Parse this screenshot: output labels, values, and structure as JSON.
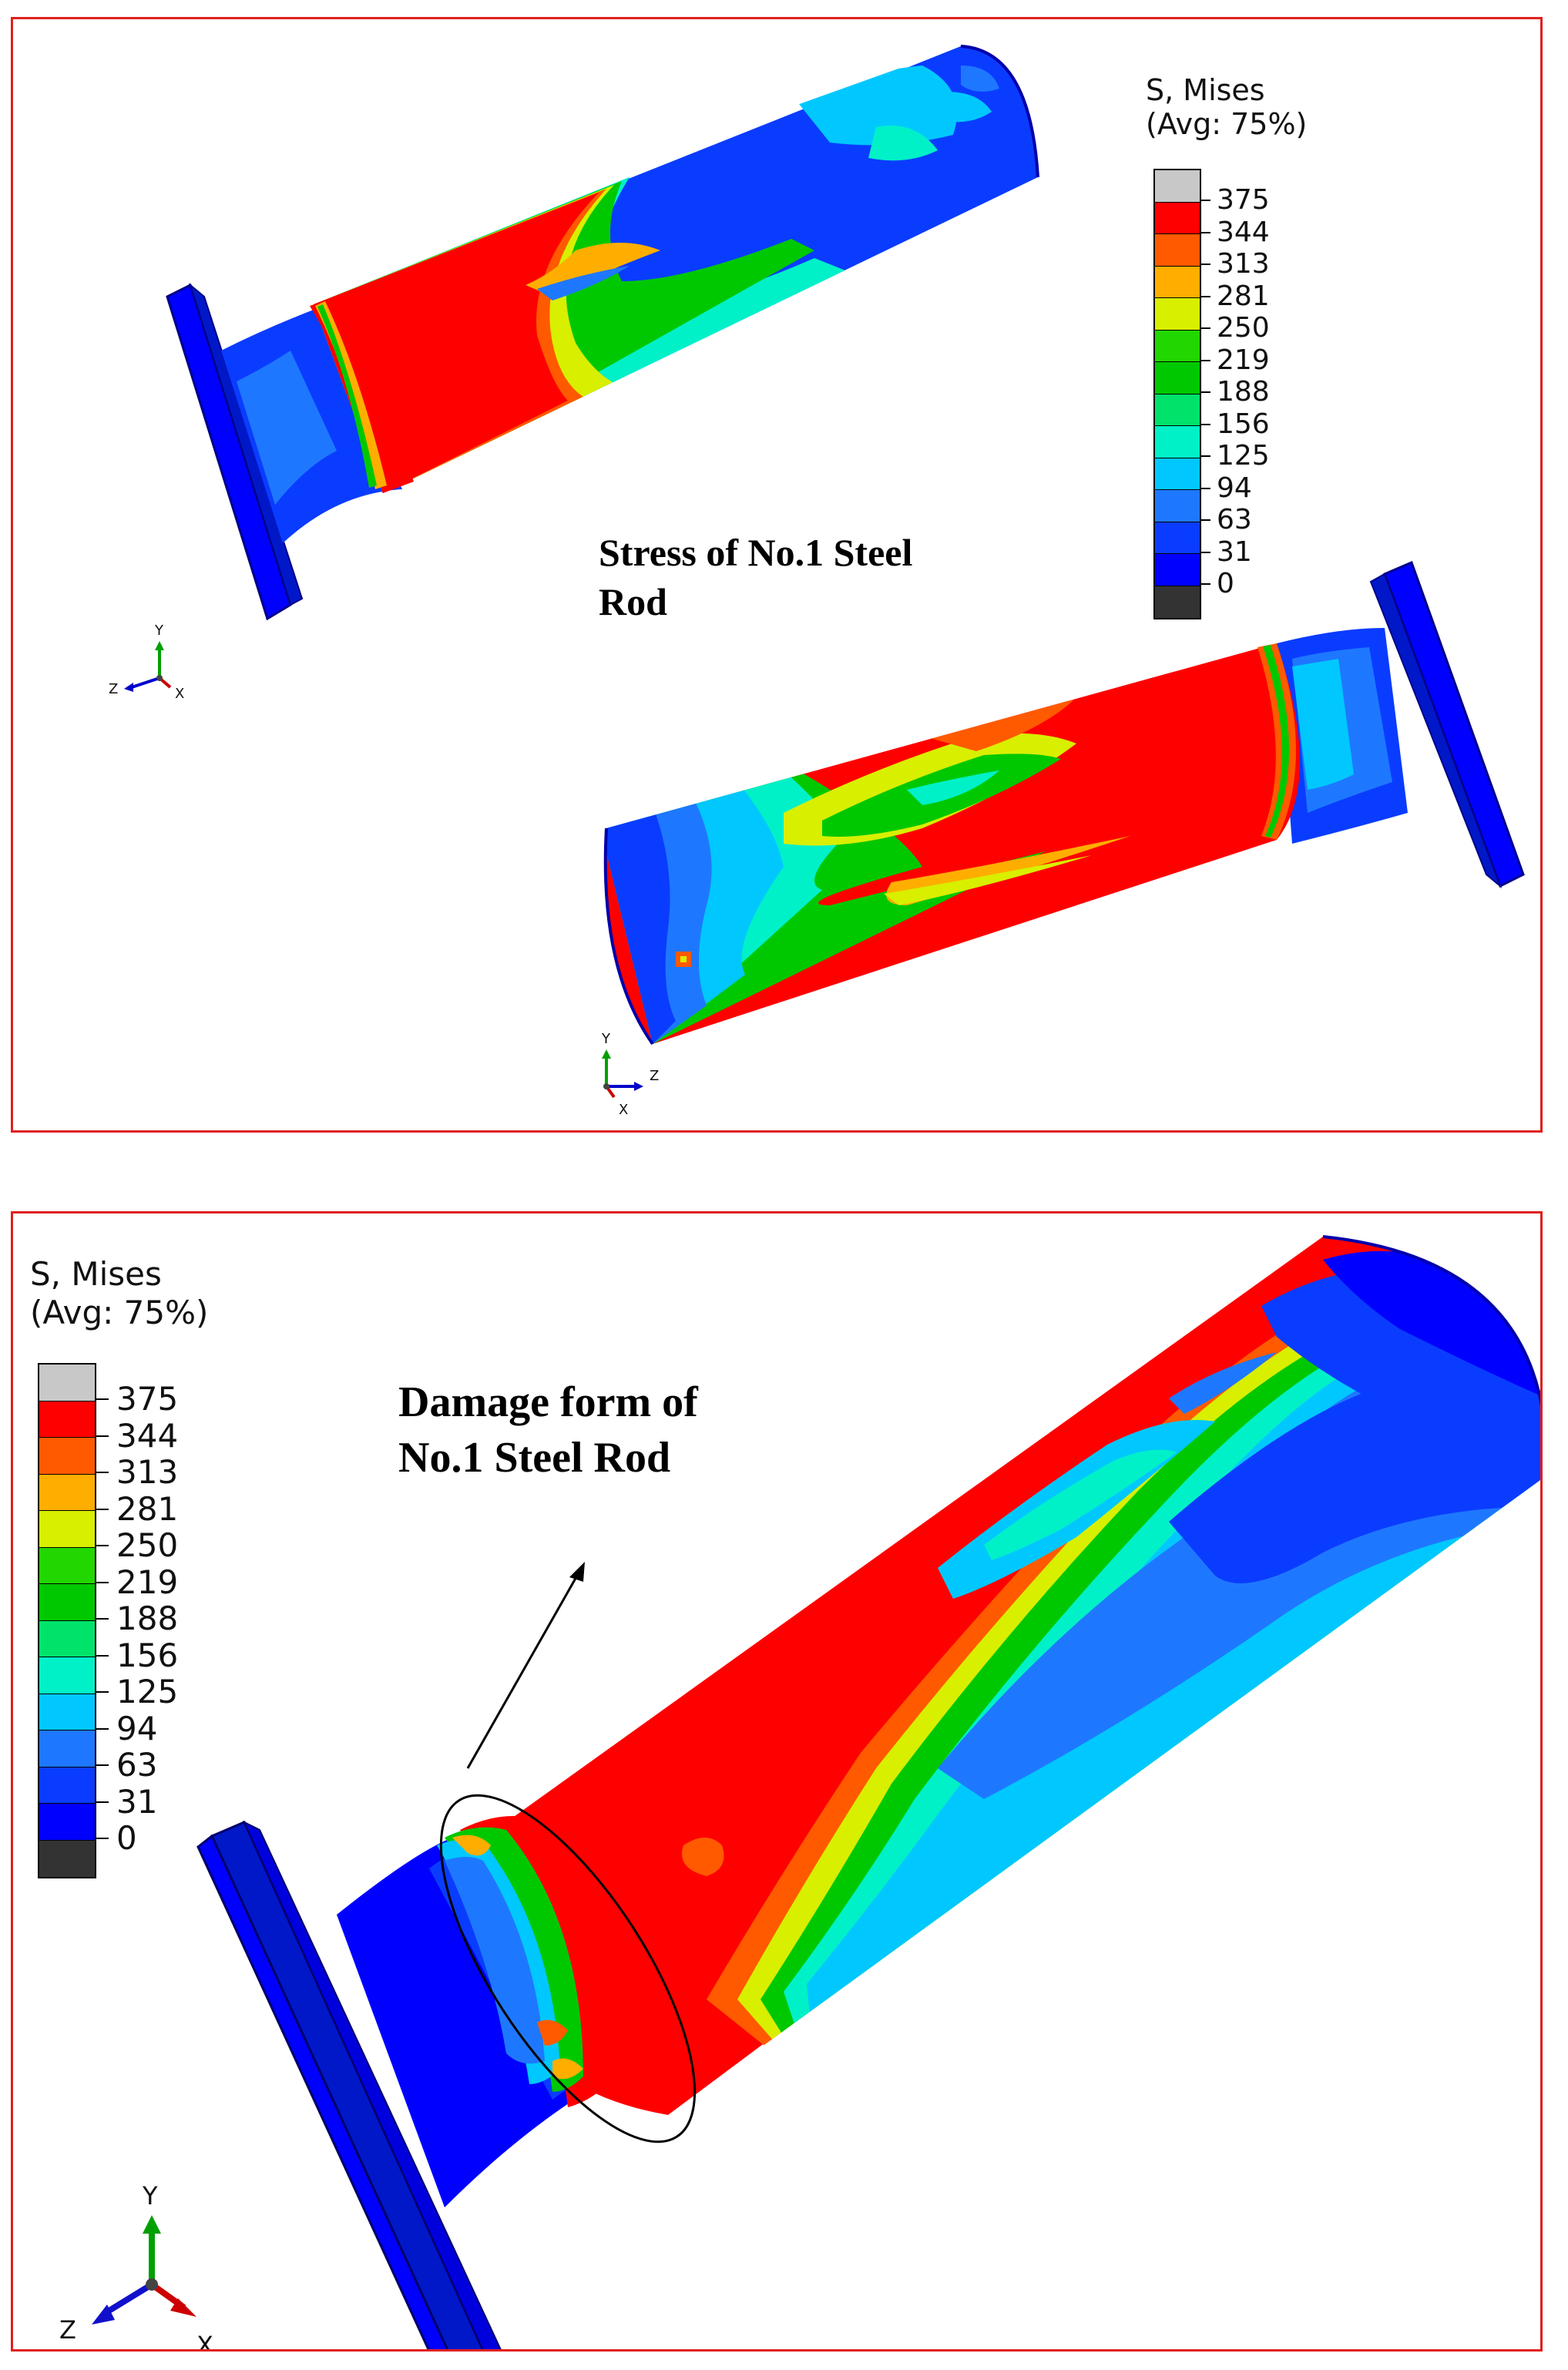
{
  "legend": {
    "title_line1": "S, Mises",
    "title_line2": "(Avg: 75%)",
    "values": [
      "375",
      "344",
      "313",
      "281",
      "250",
      "219",
      "188",
      "156",
      "125",
      "94",
      "63",
      "31",
      "0"
    ],
    "colors": [
      "#c8c8c8",
      "#ff0000",
      "#ff5a00",
      "#ffae00",
      "#d8ef00",
      "#22d600",
      "#00c800",
      "#00e36b",
      "#00f1c8",
      "#00c8ff",
      "#1e78ff",
      "#0a3cff",
      "#0000ff",
      "#333333"
    ]
  },
  "top_panel": {
    "caption_line1": "Stress of No.1 Steel",
    "caption_line2": "Rod",
    "triad_left": {
      "y": "Y",
      "z": "Z",
      "x": "X"
    },
    "triad_right": {
      "y": "Y",
      "z": "Z",
      "x": "X"
    }
  },
  "bottom_panel": {
    "caption_line1": "Damage form of",
    "caption_line2": "No.1 Steel Rod",
    "triad": {
      "y": "Y",
      "z": "Z",
      "x": "X"
    }
  },
  "border_color": "#e0201e"
}
